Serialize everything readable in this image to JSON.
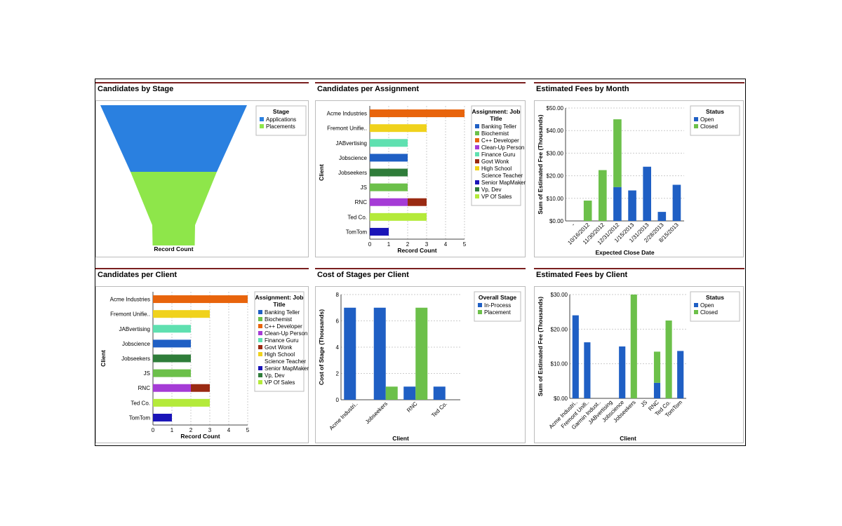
{
  "widgets": [
    {
      "title": "Candidates by Stage",
      "chart_data": {
        "type": "funnel",
        "categories": [
          "Applications",
          "Placements"
        ],
        "values": [
          null,
          null
        ],
        "colors": [
          "#2a80e0",
          "#8ee64a"
        ],
        "xlabel": "Record Count",
        "legend": {
          "title": "Stage",
          "entries": [
            "Applications",
            "Placements"
          ],
          "position": "top-right"
        }
      }
    },
    {
      "title": "Candidates per Assignment",
      "chart_data": {
        "type": "bar",
        "orientation": "horizontal",
        "stacked": true,
        "categories": [
          "Acme Industries",
          "Fremont Unifie..",
          "JABvertising",
          "Jobscience",
          "Jobseekers",
          "JS",
          "RNC",
          "Ted Co.",
          "TomTom"
        ],
        "series": [
          {
            "name": "Banking Teller",
            "color": "#1f5fc4",
            "values": [
              0,
              0,
              0,
              0,
              0,
              0,
              0,
              0,
              0
            ]
          },
          {
            "name": "Biochemist",
            "color": "#6cc04a",
            "values": [
              0,
              0,
              0,
              0,
              0,
              2,
              0,
              0,
              0
            ]
          },
          {
            "name": "C++ Developer",
            "color": "#e8640c",
            "values": [
              5,
              0,
              0,
              0,
              0,
              0,
              0,
              0,
              0
            ]
          },
          {
            "name": "Clean-Up Person",
            "color": "#a53bd6",
            "values": [
              0,
              0,
              0,
              0,
              0,
              0,
              2,
              0,
              0
            ]
          },
          {
            "name": "Finance Guru",
            "color": "#5fe0b0",
            "values": [
              0,
              0,
              2,
              0,
              0,
              0,
              0,
              0,
              0
            ]
          },
          {
            "name": "Govt Wonk",
            "color": "#9a2a12",
            "values": [
              0,
              0,
              0,
              0,
              0,
              0,
              1,
              0,
              0
            ]
          },
          {
            "name": "High School Science Teacher",
            "color": "#f0d21c",
            "values": [
              0,
              3,
              0,
              0,
              0,
              0,
              0,
              0,
              0
            ]
          },
          {
            "name": "Senior MapMaker",
            "color": "#1a14b8",
            "values": [
              0,
              0,
              0,
              0,
              0,
              0,
              0,
              0,
              1
            ]
          },
          {
            "name": "Vp, Dev",
            "color": "#2f7d3a",
            "values": [
              0,
              0,
              0,
              0,
              2,
              0,
              0,
              0,
              0
            ]
          },
          {
            "name": "VP Of Sales",
            "color": "#b4ea3a",
            "values": [
              0,
              0,
              0,
              0,
              0,
              0,
              0,
              3,
              0
            ]
          },
          {
            "name": "",
            "color": "#1f5fc4",
            "values": [
              0,
              0,
              0,
              2,
              0,
              0,
              0,
              0,
              0
            ]
          }
        ],
        "legend_entries": [
          "Banking Teller",
          "Biochemist",
          "C++ Developer",
          "Clean-Up Person",
          "Finance Guru",
          "Govt Wonk",
          "High School Science Teacher",
          "Senior MapMaker",
          "Vp, Dev",
          "VP Of Sales"
        ],
        "legend": {
          "title": "Assignment: Job Title",
          "position": "right"
        },
        "xlabel": "Record Count",
        "ylabel": "Client",
        "xlim": [
          0,
          5
        ],
        "xticks": [
          "0",
          "1",
          "2",
          "3",
          "4",
          "5"
        ]
      }
    },
    {
      "title": "Estimated Fees by Month",
      "chart_data": {
        "type": "bar",
        "stacked": true,
        "categories": [
          "-",
          "10/16/2012",
          "11/30/2012",
          "12/31/2012",
          "1/15/2013",
          "1/31/2013",
          "2/28/2013",
          "8/15/2013"
        ],
        "series": [
          {
            "name": "Open",
            "color": "#1f5fc4",
            "values": [
              0,
              0,
              0,
              15,
              13.5,
              24,
              4,
              16
            ]
          },
          {
            "name": "Closed",
            "color": "#6cc04a",
            "values": [
              0,
              9,
              22.5,
              30,
              0,
              0,
              0,
              0
            ]
          }
        ],
        "legend": {
          "title": "Status",
          "position": "top-right"
        },
        "xlabel": "Expected Close Date",
        "ylabel": "Sum of Estimated Fee (Thousands)",
        "ylim": [
          0,
          50
        ],
        "yticks": [
          "$0.00",
          "$10.00",
          "$20.00",
          "$30.00",
          "$40.00",
          "$50.00"
        ]
      }
    },
    {
      "title": "Candidates per Client",
      "chart_data": {
        "type": "bar",
        "orientation": "horizontal",
        "stacked": true,
        "categories": [
          "Acme Industries",
          "Fremont Unifie..",
          "JABvertising",
          "Jobscience",
          "Jobseekers",
          "JS",
          "RNC",
          "Ted Co.",
          "TomTom"
        ],
        "series": [
          {
            "name": "Banking Teller",
            "color": "#1f5fc4",
            "values": [
              0,
              0,
              0,
              0,
              0,
              0,
              0,
              0,
              0
            ]
          },
          {
            "name": "Biochemist",
            "color": "#6cc04a",
            "values": [
              0,
              0,
              0,
              0,
              0,
              2,
              0,
              0,
              0
            ]
          },
          {
            "name": "C++ Developer",
            "color": "#e8640c",
            "values": [
              5,
              0,
              0,
              0,
              0,
              0,
              0,
              0,
              0
            ]
          },
          {
            "name": "Clean-Up Person",
            "color": "#a53bd6",
            "values": [
              0,
              0,
              0,
              0,
              0,
              0,
              2,
              0,
              0
            ]
          },
          {
            "name": "Finance Guru",
            "color": "#5fe0b0",
            "values": [
              0,
              0,
              2,
              0,
              0,
              0,
              0,
              0,
              0
            ]
          },
          {
            "name": "Govt Wonk",
            "color": "#9a2a12",
            "values": [
              0,
              0,
              0,
              0,
              0,
              0,
              1,
              0,
              0
            ]
          },
          {
            "name": "High School Science Teacher",
            "color": "#f0d21c",
            "values": [
              0,
              3,
              0,
              0,
              0,
              0,
              0,
              0,
              0
            ]
          },
          {
            "name": "Senior MapMaker",
            "color": "#1a14b8",
            "values": [
              0,
              0,
              0,
              0,
              0,
              0,
              0,
              0,
              1
            ]
          },
          {
            "name": "Vp, Dev",
            "color": "#2f7d3a",
            "values": [
              0,
              0,
              0,
              0,
              2,
              0,
              0,
              0,
              0
            ]
          },
          {
            "name": "VP Of Sales",
            "color": "#b4ea3a",
            "values": [
              0,
              0,
              0,
              0,
              0,
              0,
              0,
              3,
              0
            ]
          },
          {
            "name": "",
            "color": "#1f5fc4",
            "values": [
              0,
              0,
              0,
              2,
              0,
              0,
              0,
              0,
              0
            ]
          }
        ],
        "legend_entries": [
          "Banking Teller",
          "Biochemist",
          "C++ Developer",
          "Clean-Up Person",
          "Finance Guru",
          "Govt Wonk",
          "High School Science Teacher",
          "Senior MapMaker",
          "Vp, Dev",
          "VP Of Sales"
        ],
        "legend": {
          "title": "Assignment: Job Title",
          "position": "right"
        },
        "xlabel": "Record Count",
        "ylabel": "Client",
        "xlim": [
          0,
          5
        ],
        "xticks": [
          "0",
          "1",
          "2",
          "3",
          "4",
          "5"
        ]
      }
    },
    {
      "title": "Cost of Stages per Client",
      "chart_data": {
        "type": "bar",
        "grouped": true,
        "categories": [
          "Acme Industri..",
          "Jobseekers",
          "RNC",
          "Ted Co."
        ],
        "series": [
          {
            "name": "In-Process",
            "color": "#1f5fc4",
            "values": [
              7,
              7,
              1,
              1
            ]
          },
          {
            "name": "Placement",
            "color": "#6cc04a",
            "values": [
              0,
              1,
              7,
              0
            ]
          }
        ],
        "legend": {
          "title": "Overall Stage",
          "position": "top-right"
        },
        "xlabel": "Client",
        "ylabel": "Cost of Stage (Thousands)",
        "ylim": [
          0,
          8
        ],
        "yticks": [
          "0",
          "2",
          "4",
          "6",
          "8"
        ]
      }
    },
    {
      "title": "Estimated Fees by Client",
      "chart_data": {
        "type": "bar",
        "stacked": true,
        "categories": [
          "Acme Industri..",
          "Fremont Unifi..",
          "Garmin Indust..",
          "JABvertising",
          "Jobscience",
          "Jobseekers",
          "JS",
          "RNC",
          "Ted Co.",
          "TomTom"
        ],
        "series": [
          {
            "name": "Open",
            "color": "#1f5fc4",
            "values": [
              24,
              16.2,
              0,
              0,
              15,
              0,
              0,
              4.5,
              0,
              13.7
            ]
          },
          {
            "name": "Closed",
            "color": "#6cc04a",
            "values": [
              0,
              0,
              0,
              0,
              0,
              30,
              0,
              9,
              22.5,
              0
            ]
          }
        ],
        "legend": {
          "title": "Status",
          "position": "top-right"
        },
        "xlabel": "Client",
        "ylabel": "Sum of Estimated Fee (Thousands)",
        "ylim": [
          0,
          30
        ],
        "yticks": [
          "$0.00",
          "$10.00",
          "$20.00",
          "$30.00"
        ]
      }
    }
  ]
}
